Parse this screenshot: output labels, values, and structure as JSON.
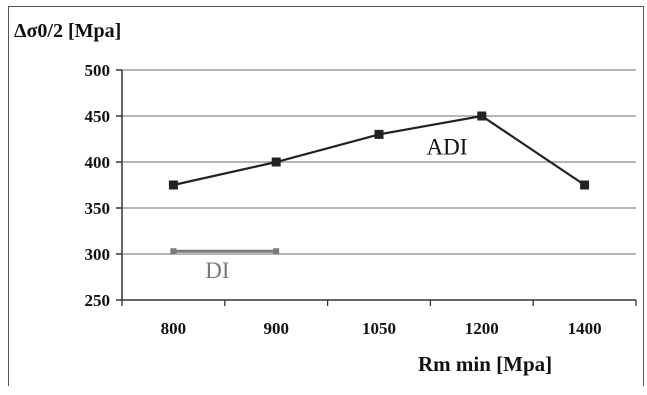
{
  "chart_data": {
    "type": "line",
    "title": "",
    "ylabel": "Δσ0/2  [Mpa]",
    "xlabel": "Rm min [Mpa]",
    "categories": [
      "800",
      "900",
      "1050",
      "1200",
      "1400"
    ],
    "ylim": [
      250,
      500
    ],
    "yticks": [
      250,
      300,
      350,
      400,
      450,
      500
    ],
    "grid": true,
    "series": [
      {
        "name": "ADI",
        "values": [
          375,
          400,
          430,
          450,
          375
        ],
        "color": "#222222"
      },
      {
        "name": "DI",
        "values": [
          303,
          303,
          null,
          null,
          null
        ],
        "color": "#7a7a7a"
      }
    ]
  }
}
